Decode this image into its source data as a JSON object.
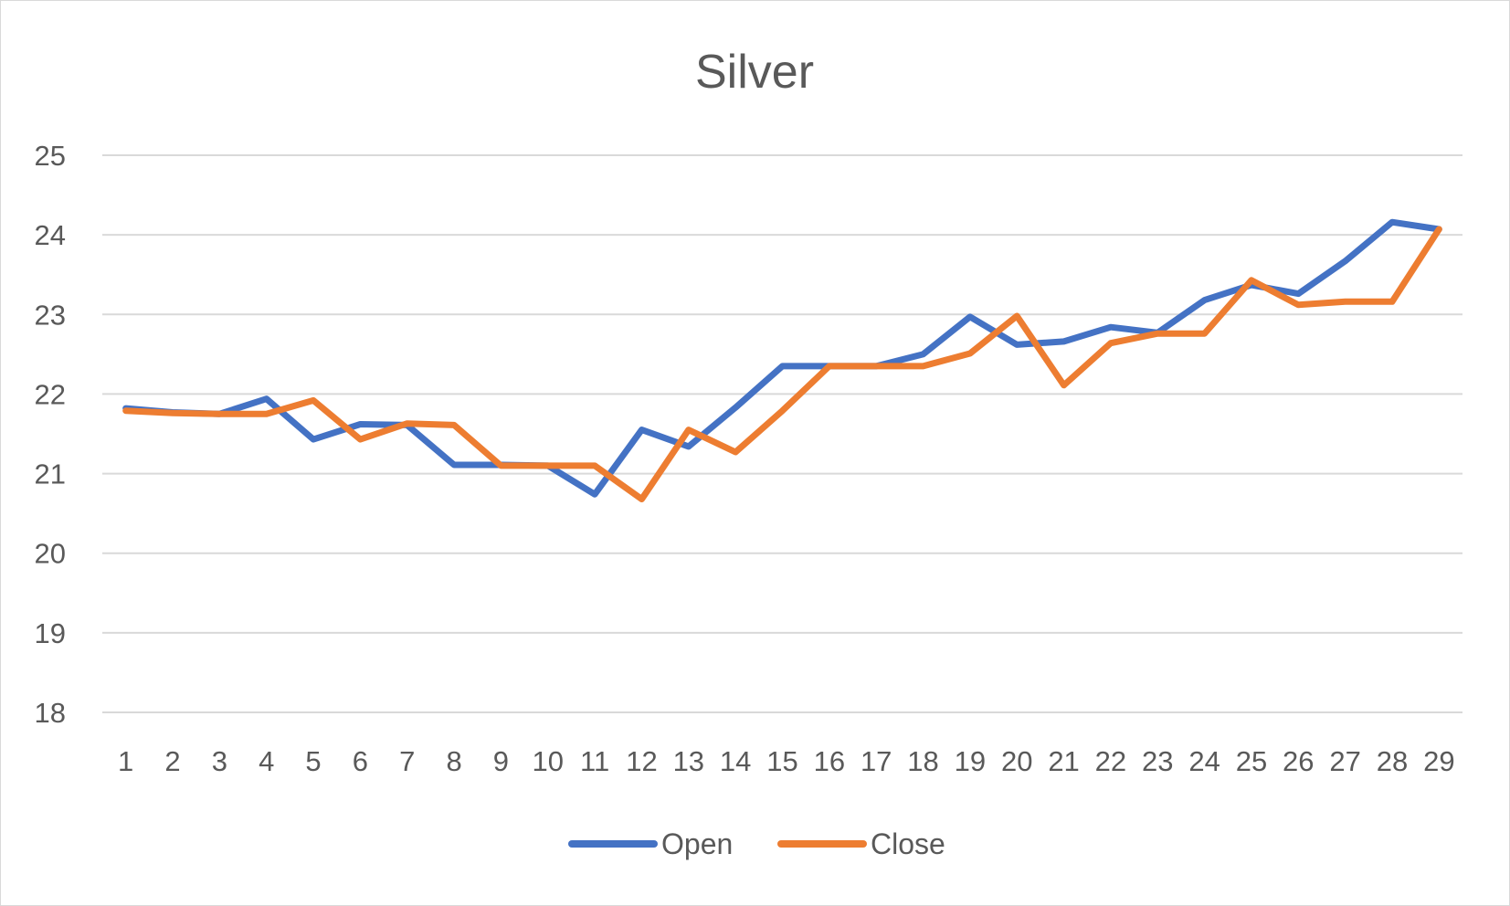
{
  "chart_data": {
    "type": "line",
    "title": "Silver",
    "xlabel": "",
    "ylabel": "",
    "categories": [
      "1",
      "2",
      "3",
      "4",
      "5",
      "6",
      "7",
      "8",
      "9",
      "10",
      "11",
      "12",
      "13",
      "14",
      "15",
      "16",
      "17",
      "18",
      "19",
      "20",
      "21",
      "22",
      "23",
      "24",
      "25",
      "26",
      "27",
      "28",
      "29"
    ],
    "ylim": [
      18,
      25
    ],
    "yticks": [
      "18",
      "19",
      "20",
      "21",
      "22",
      "23",
      "24",
      "25"
    ],
    "grid": true,
    "legend_position": "bottom",
    "series": [
      {
        "name": "Open",
        "color": "#4472c4",
        "values": [
          21.82,
          21.77,
          21.75,
          21.94,
          21.43,
          21.62,
          21.61,
          21.11,
          21.11,
          21.1,
          20.74,
          21.55,
          21.34,
          21.83,
          22.35,
          22.35,
          22.35,
          22.5,
          22.97,
          22.62,
          22.66,
          22.84,
          22.77,
          23.18,
          23.37,
          23.26,
          23.67,
          24.16,
          24.07
        ]
      },
      {
        "name": "Close",
        "color": "#ed7d31",
        "values": [
          21.79,
          21.76,
          21.75,
          21.75,
          21.92,
          21.43,
          21.63,
          21.61,
          21.1,
          21.1,
          21.1,
          20.68,
          21.55,
          21.27,
          21.79,
          22.35,
          22.35,
          22.35,
          22.51,
          22.98,
          22.11,
          22.64,
          22.76,
          22.76,
          23.43,
          23.12,
          23.16,
          23.16,
          24.07
        ]
      }
    ]
  }
}
